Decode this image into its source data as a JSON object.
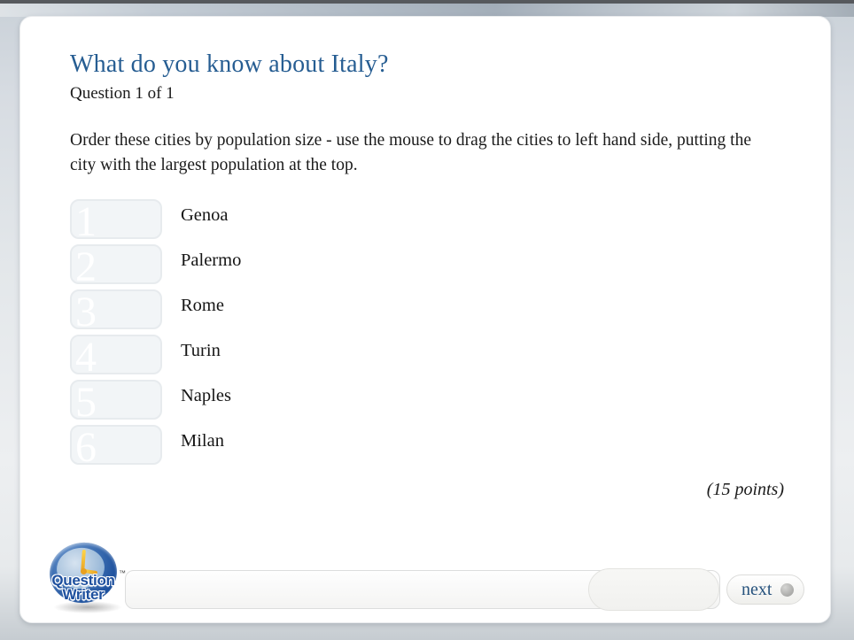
{
  "page": {
    "title": "What do you know about Italy?",
    "question_counter": "Question 1 of 1",
    "instructions": "Order these cities by population size - use the mouse to drag the cities to left hand side, putting the city with the largest population at the top.",
    "points": "(15 points)"
  },
  "quiz": {
    "slots": [
      "1",
      "2",
      "3",
      "4",
      "5",
      "6"
    ],
    "cities": [
      "Genoa",
      "Palermo",
      "Rome",
      "Turin",
      "Naples",
      "Milan"
    ]
  },
  "footer": {
    "logo_line1": "Question",
    "logo_line2": "Writer",
    "trademark": "™",
    "next_label": "next"
  },
  "colors": {
    "title_blue": "#265d92",
    "next_blue": "#26527d",
    "logo_blue": "#1d4f9e",
    "slot_fill": "#f2f5f7",
    "slot_border": "#e7ebee",
    "top_strip": "#56595d"
  }
}
